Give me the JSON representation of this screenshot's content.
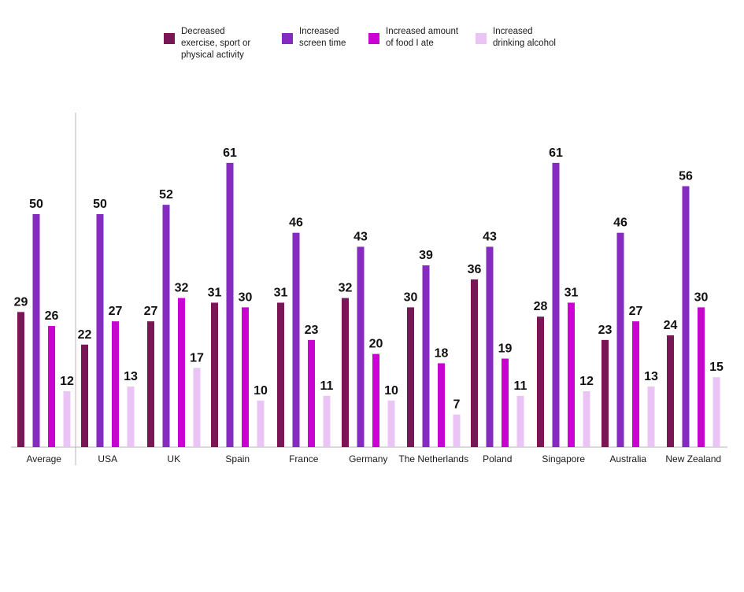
{
  "chart_data": {
    "type": "bar",
    "categories": [
      "Average",
      "USA",
      "UK",
      "Spain",
      "France",
      "Germany",
      "The Netherlands",
      "Poland",
      "Singapore",
      "Australia",
      "New Zealand"
    ],
    "series": [
      {
        "name": "Decreased exercise, sport or physical activity",
        "color": "#7a1556",
        "values": [
          29,
          22,
          27,
          31,
          31,
          32,
          30,
          36,
          28,
          23,
          24
        ]
      },
      {
        "name": "Increased screen time",
        "color": "#862bbf",
        "values": [
          50,
          50,
          52,
          61,
          46,
          43,
          39,
          43,
          61,
          46,
          56
        ]
      },
      {
        "name": "Increased amount of food I ate",
        "color": "#c903d1",
        "values": [
          26,
          27,
          32,
          30,
          23,
          20,
          18,
          19,
          31,
          27,
          30
        ]
      },
      {
        "name": "Increased drinking alcohol",
        "color": "#e9c4f5",
        "values": [
          12,
          13,
          17,
          10,
          11,
          10,
          7,
          11,
          12,
          13,
          15
        ]
      }
    ],
    "ylim": [
      0,
      70
    ],
    "legend_position": "top",
    "grid": false
  },
  "legend": {
    "items": [
      {
        "line1": "Decreased",
        "line2": "exercise, sport or",
        "line3": "physical activity",
        "color": "#7a1556"
      },
      {
        "line1": "Increased",
        "line2": "screen time",
        "line3": "",
        "color": "#862bbf"
      },
      {
        "line1": "Increased amount",
        "line2": "of food I ate",
        "line3": "",
        "color": "#c903d1"
      },
      {
        "line1": "Increased",
        "line2": "drinking alcohol",
        "line3": "",
        "color": "#e9c4f5"
      }
    ]
  }
}
